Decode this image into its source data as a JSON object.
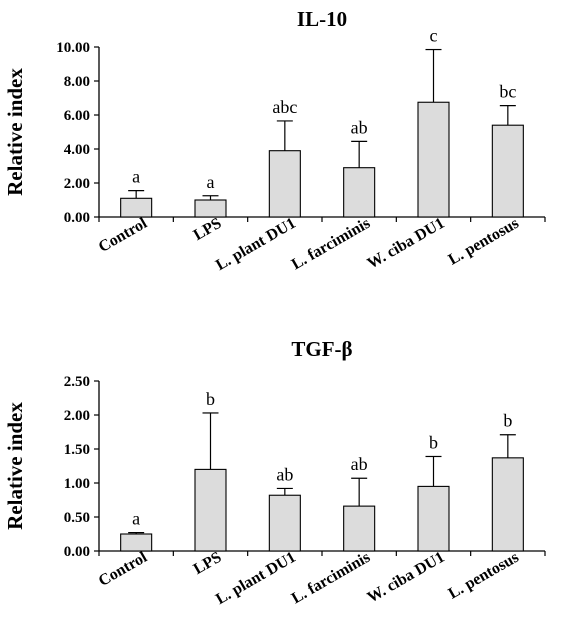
{
  "chart_data": [
    {
      "type": "bar",
      "title": "IL-10",
      "ylabel": "Relative index",
      "xlabel": "",
      "ylim": [
        0,
        10
      ],
      "yticks": [
        "0.00",
        "2.00",
        "4.00",
        "6.00",
        "8.00",
        "10.00"
      ],
      "categories": [
        "Control",
        "LPS",
        "L. plant DU1",
        "L. farciminis",
        "W. ciba DU1",
        "L. pentosus"
      ],
      "values": [
        1.1,
        1.0,
        3.9,
        2.9,
        6.75,
        5.4
      ],
      "errors": [
        0.45,
        0.25,
        1.75,
        1.55,
        3.1,
        1.15
      ],
      "significance": [
        "a",
        "a",
        "abc",
        "ab",
        "c",
        "bc"
      ],
      "bar_color": "#dcdcdc",
      "grid": false
    },
    {
      "type": "bar",
      "title": "TGF-β",
      "ylabel": "Relative index",
      "xlabel": "",
      "ylim": [
        0,
        2.5
      ],
      "yticks": [
        "0.00",
        "0.50",
        "1.00",
        "1.50",
        "2.00",
        "2.50"
      ],
      "categories": [
        "Control",
        "LPS",
        "L. plant DU1",
        "L. farciminis",
        "W. ciba DU1",
        "L. pentosus"
      ],
      "values": [
        0.25,
        1.2,
        0.82,
        0.66,
        0.95,
        1.37
      ],
      "errors": [
        0.02,
        0.83,
        0.1,
        0.41,
        0.44,
        0.34
      ],
      "significance": [
        "a",
        "b",
        "ab",
        "ab",
        "b",
        "b"
      ],
      "bar_color": "#dcdcdc",
      "grid": false
    }
  ]
}
